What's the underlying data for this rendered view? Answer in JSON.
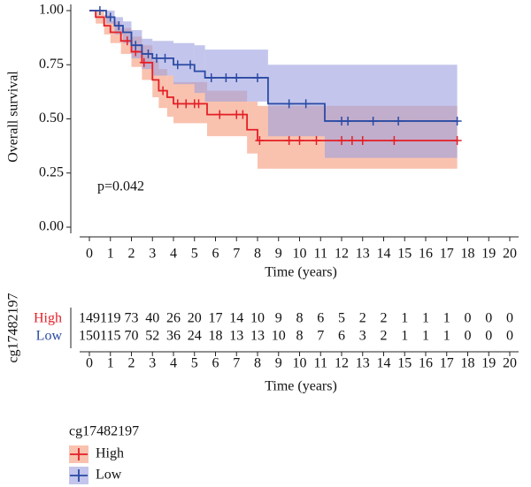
{
  "chart_data": {
    "type": "step",
    "xlabel": "Time (years)",
    "ylabel": "Overall survival",
    "annotation": "p=0.042",
    "legend_title": "cg17482197",
    "xlim": [
      0,
      20
    ],
    "xticks": [
      0,
      1,
      2,
      3,
      4,
      5,
      6,
      7,
      8,
      9,
      10,
      11,
      12,
      13,
      14,
      15,
      16,
      17,
      18,
      19,
      20
    ],
    "ylim": [
      0,
      1
    ],
    "yticks": [
      {
        "value": 0,
        "label": "0.00"
      },
      {
        "value": 0.25,
        "label": "0.25"
      },
      {
        "value": 0.5,
        "label": "0.50"
      },
      {
        "value": 0.75,
        "label": "0.75"
      },
      {
        "value": 1,
        "label": "1.00"
      }
    ],
    "series": [
      {
        "name": "High",
        "color": "#e41f26",
        "band_color": "#f59a7a",
        "x": [
          0,
          0.3,
          0.7,
          1,
          1.5,
          2,
          2.5,
          3,
          3.3,
          3.7,
          4,
          5.6,
          7.5,
          8,
          17.5
        ],
        "values": [
          1,
          0.97,
          0.93,
          0.9,
          0.86,
          0.81,
          0.76,
          0.68,
          0.63,
          0.6,
          0.57,
          0.52,
          0.45,
          0.4,
          0.4
        ],
        "lower": [
          1,
          0.94,
          0.89,
          0.85,
          0.8,
          0.74,
          0.68,
          0.6,
          0.55,
          0.51,
          0.48,
          0.42,
          0.34,
          0.27,
          0.27
        ],
        "upper": [
          1,
          1,
          0.98,
          0.95,
          0.92,
          0.88,
          0.84,
          0.77,
          0.73,
          0.7,
          0.67,
          0.63,
          0.58,
          0.56,
          0.56
        ],
        "censor_x": [
          1.8,
          2.2,
          2.6,
          3.5,
          4.2,
          4.6,
          5.0,
          5.2,
          6.2,
          7.0,
          7.3,
          8.1,
          9.5,
          10,
          10.8,
          12,
          12.5,
          13,
          14.5,
          17.5
        ],
        "censor_y": [
          0.86,
          0.81,
          0.76,
          0.63,
          0.57,
          0.57,
          0.57,
          0.57,
          0.52,
          0.52,
          0.52,
          0.4,
          0.4,
          0.4,
          0.4,
          0.4,
          0.4,
          0.4,
          0.4,
          0.4
        ]
      },
      {
        "name": "Low",
        "color": "#2a4aa3",
        "band_color": "#9b9ee0",
        "x": [
          0,
          0.8,
          1.2,
          1.6,
          2,
          2.5,
          3,
          4,
          5,
          5.5,
          8.5,
          11.2,
          17.5
        ],
        "values": [
          1,
          0.97,
          0.93,
          0.9,
          0.84,
          0.8,
          0.78,
          0.75,
          0.72,
          0.69,
          0.57,
          0.49,
          0.49
        ],
        "lower": [
          1,
          0.94,
          0.89,
          0.85,
          0.78,
          0.73,
          0.7,
          0.66,
          0.62,
          0.58,
          0.42,
          0.32,
          0.32
        ],
        "upper": [
          1,
          1,
          0.97,
          0.95,
          0.91,
          0.87,
          0.86,
          0.85,
          0.84,
          0.82,
          0.75,
          0.75,
          0.75
        ],
        "censor_x": [
          0.5,
          1.0,
          1.4,
          2.2,
          2.8,
          3.2,
          3.6,
          4.2,
          4.8,
          5.8,
          6.5,
          7.0,
          8.0,
          9.5,
          10.3,
          12.0,
          12.3,
          13.5,
          14.7,
          17.5
        ],
        "censor_y": [
          1,
          0.97,
          0.93,
          0.84,
          0.8,
          0.78,
          0.78,
          0.75,
          0.75,
          0.69,
          0.69,
          0.69,
          0.69,
          0.57,
          0.57,
          0.49,
          0.49,
          0.49,
          0.49,
          0.49
        ]
      }
    ],
    "risk_table": {
      "ylabel": "cg17482197",
      "xlabel": "Time (years)",
      "rows": [
        {
          "name": "High",
          "color": "#e41f26",
          "values": [
            149,
            119,
            73,
            40,
            26,
            20,
            17,
            14,
            10,
            9,
            8,
            6,
            5,
            2,
            2,
            1,
            1,
            1,
            0,
            0,
            0
          ]
        },
        {
          "name": "Low",
          "color": "#2a4aa3",
          "values": [
            150,
            115,
            70,
            52,
            36,
            24,
            18,
            13,
            13,
            10,
            8,
            7,
            6,
            3,
            2,
            1,
            1,
            1,
            0,
            0,
            0
          ]
        }
      ]
    }
  }
}
